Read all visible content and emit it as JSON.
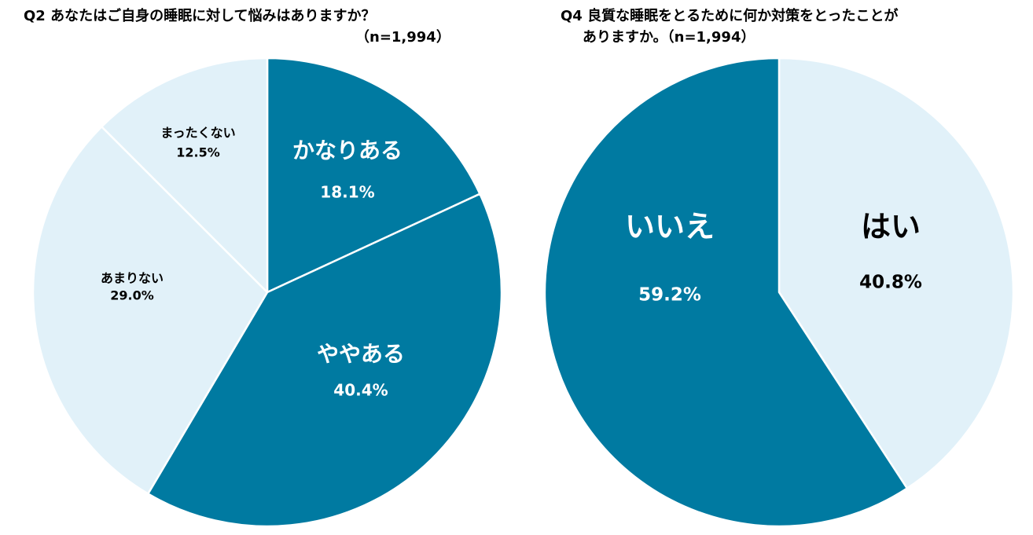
{
  "colors": {
    "dark": "#007aa1",
    "light": "#e1f1f9",
    "white": "#ffffff",
    "label_on_dark": "#ffffff",
    "label_on_light": "#000000"
  },
  "chart_data": [
    {
      "type": "pie",
      "title": "Q2 あなたはご自身の睡眠に対して悩みはありますか？",
      "subtitle": "（n=1,994）",
      "slices": [
        {
          "label": "かなりある",
          "value": 18.1,
          "display": "18.1%",
          "color": "dark",
          "label_size": "large"
        },
        {
          "label": "ややある",
          "value": 40.4,
          "display": "40.4%",
          "color": "dark",
          "label_size": "large"
        },
        {
          "label": "あまりない",
          "value": 29.0,
          "display": "29.0%",
          "color": "light",
          "label_size": "small"
        },
        {
          "label": "まったくない",
          "value": 12.5,
          "display": "12.5%",
          "color": "light",
          "label_size": "small"
        }
      ],
      "start_angle_deg": 0,
      "direction": "clockwise"
    },
    {
      "type": "pie",
      "title": "Q4 良質な睡眠をとるために何か対策をとったことが",
      "subtitle": "ありますか。（n=1,994）",
      "slices": [
        {
          "label": "はい",
          "value": 40.8,
          "display": "40.8%",
          "color": "light",
          "label_size": "xlarge"
        },
        {
          "label": "いいえ",
          "value": 59.2,
          "display": "59.2%",
          "color": "dark",
          "label_size": "xlarge"
        }
      ],
      "start_angle_deg": 0,
      "direction": "clockwise"
    }
  ]
}
